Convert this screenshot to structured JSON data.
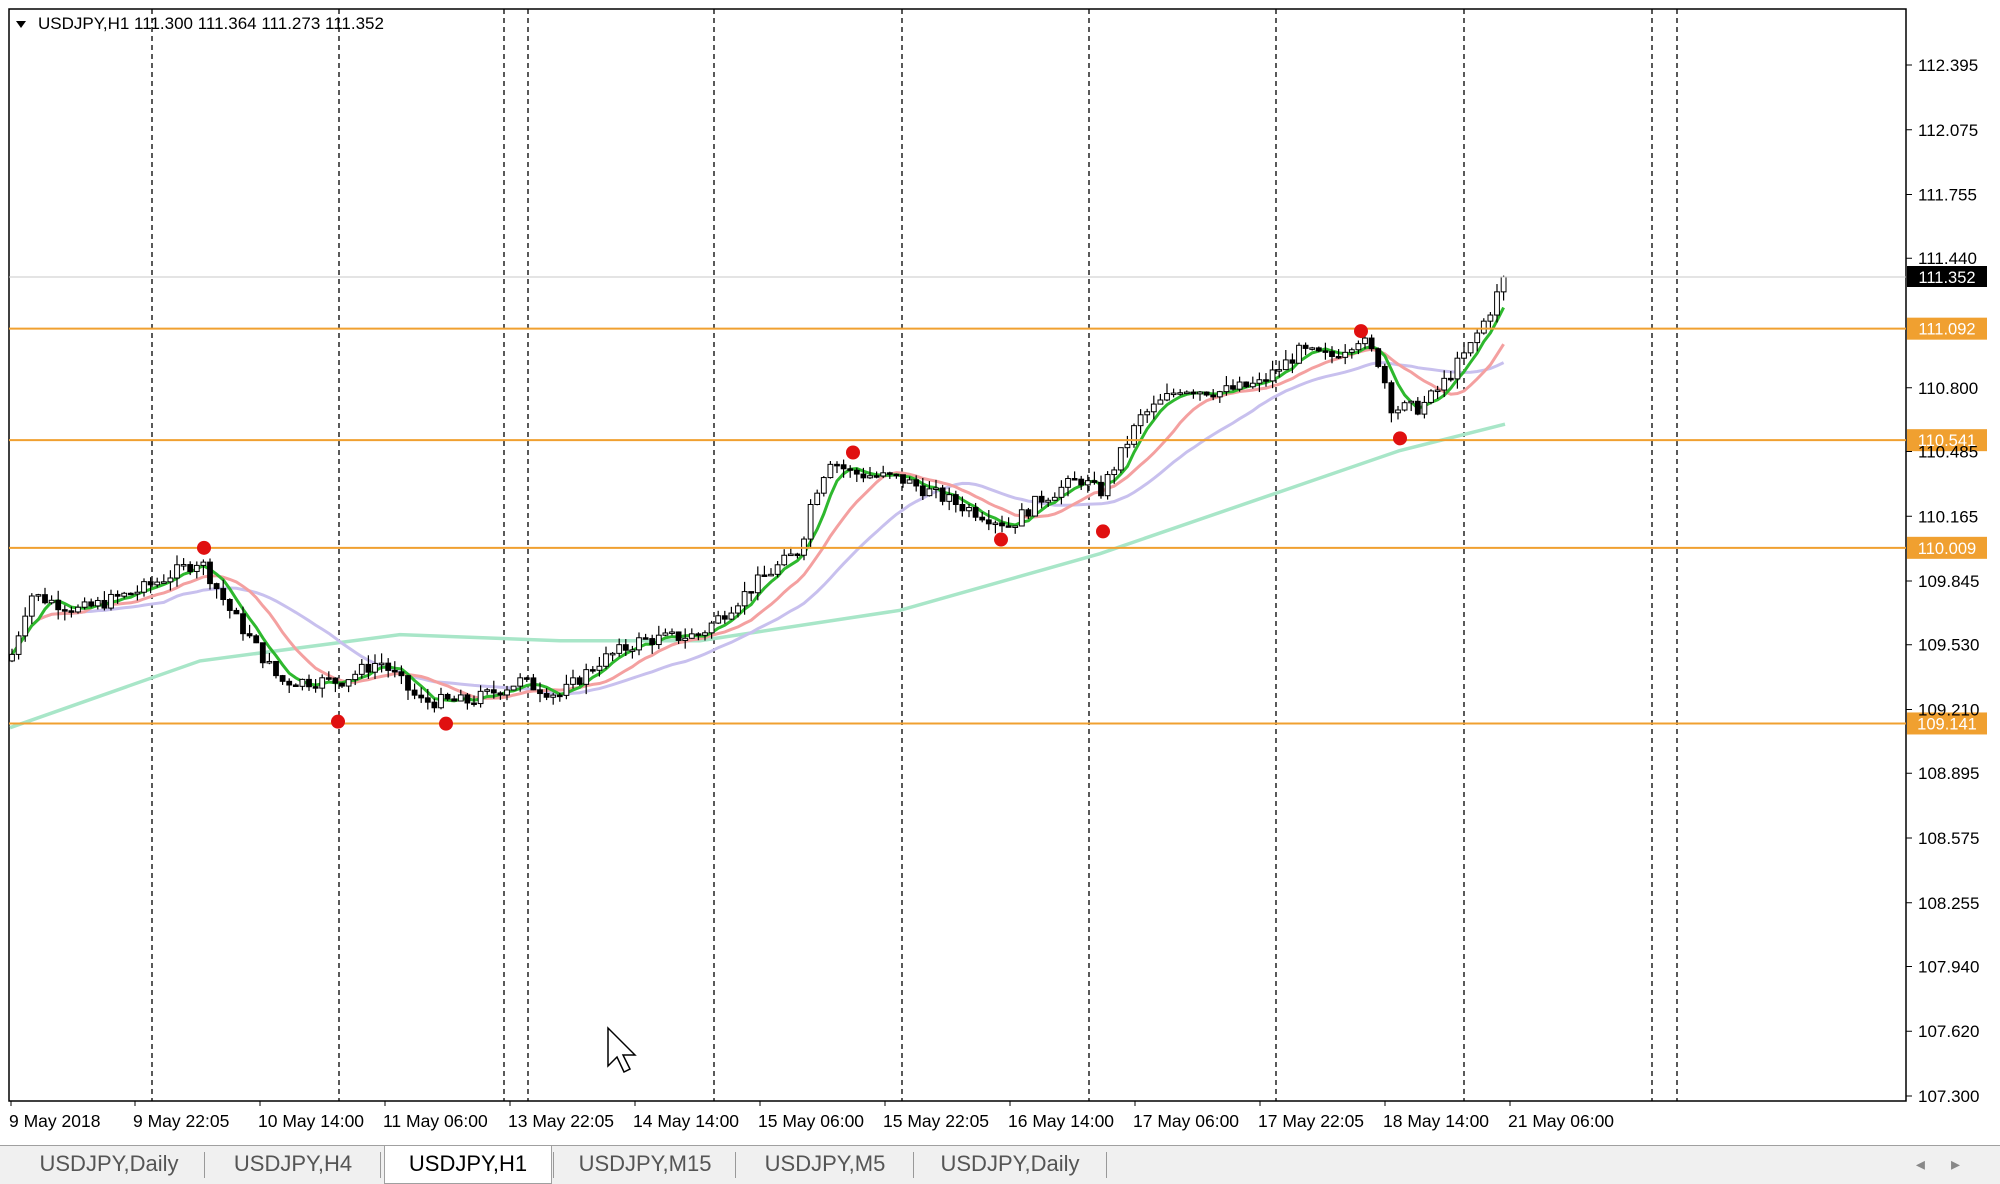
{
  "chart": {
    "symbol_header": "USDJPY,H1  111.300 111.364 111.273 111.352",
    "header_arrow_icon": "dropdown-triangle-icon",
    "current_price": "111.352",
    "price_axis": [
      "112.395",
      "112.075",
      "111.755",
      "111.440",
      "110.800",
      "110.485",
      "110.165",
      "109.845",
      "109.530",
      "109.210",
      "108.895",
      "108.575",
      "108.255",
      "107.940",
      "107.620",
      "107.300"
    ],
    "levels": [
      {
        "label": "111.092",
        "value": 111.092
      },
      {
        "label": "110.541",
        "value": 110.541
      },
      {
        "label": "110.009",
        "value": 110.009
      },
      {
        "label": "109.141",
        "value": 109.141
      }
    ],
    "time_axis": [
      "9 May 2018",
      "9 May 22:05",
      "10 May 14:00",
      "11 May 06:00",
      "13 May 22:05",
      "14 May 14:00",
      "15 May 06:00",
      "15 May 22:05",
      "16 May 14:00",
      "17 May 06:00",
      "17 May 22:05",
      "18 May 14:00",
      "21 May 06:00"
    ],
    "colors": {
      "level_line": "#f0a030",
      "level_label_bg": "#f0a030",
      "current_price_bg": "#000000",
      "bull_candle": "#ffffff",
      "bear_candle": "#000000",
      "ma_fast": "#2db82d",
      "ma_mid": "#f4a0a0",
      "ma_slow": "#c8c0ee",
      "ma_long": "#a8e6c8",
      "swing_dot": "#e01010"
    },
    "cursor_icon": "mouse-pointer-icon"
  },
  "tabs": [
    {
      "label": "USDJPY,Daily",
      "active": false
    },
    {
      "label": "USDJPY,H4",
      "active": false
    },
    {
      "label": "USDJPY,H1",
      "active": true
    },
    {
      "label": "USDJPY,M15",
      "active": false
    },
    {
      "label": "USDJPY,M5",
      "active": false
    },
    {
      "label": "USDJPY,Daily",
      "active": false
    }
  ],
  "tab_scroll": {
    "left_icon": "scroll-left-icon",
    "right_icon": "scroll-right-icon",
    "left": "◂",
    "right": "▸"
  }
}
